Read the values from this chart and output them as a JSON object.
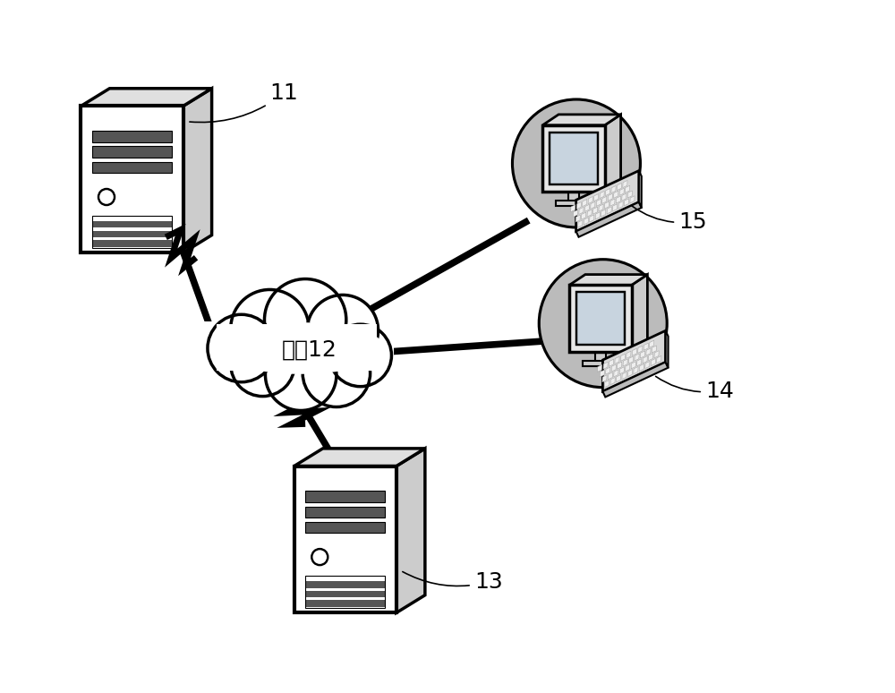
{
  "background_color": "#ffffff",
  "label_11": "11",
  "label_12": "网络12",
  "label_13": "13",
  "label_14": "14",
  "label_15": "15",
  "label_fontsize": 18,
  "line_color": "#000000",
  "line_width": 2.5,
  "server_face_color": "#ffffff",
  "server_side_color": "#cccccc",
  "server_top_color": "#e0e0e0",
  "server_stripe_color": "#555555",
  "cloud_face_color": "#ffffff",
  "monitor_crt_color": "#bbbbbb",
  "monitor_screen_color": "#c8d4df",
  "monitor_body_color": "#e8e8e8",
  "keyboard_color": "#d8d8d8",
  "keyboard_side_color": "#aaaaaa"
}
